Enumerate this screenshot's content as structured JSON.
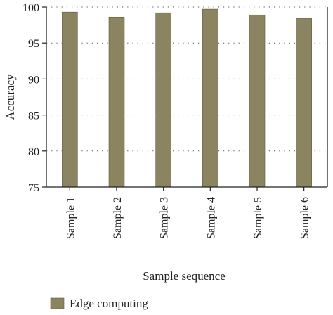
{
  "chart_data": {
    "type": "bar",
    "categories": [
      "Sample 1",
      "Sample 2",
      "Sample 3",
      "Sample 4",
      "Sample 5",
      "Sample 6"
    ],
    "series": [
      {
        "name": "Edge computing",
        "values": [
          99.3,
          98.6,
          99.2,
          99.7,
          98.9,
          98.4
        ]
      }
    ],
    "title": "",
    "xlabel": "Sample sequence",
    "ylabel": "Accuracy",
    "ylim": [
      75,
      100
    ],
    "yticks": [
      75,
      80,
      85,
      90,
      95,
      100
    ],
    "grid": "horizontal dotted",
    "legend_position": "bottom-left",
    "colors": {
      "bar": "#8a8560",
      "bar_stroke": "#5f5b3f",
      "axis": "#222222",
      "grid": "#555555"
    }
  }
}
